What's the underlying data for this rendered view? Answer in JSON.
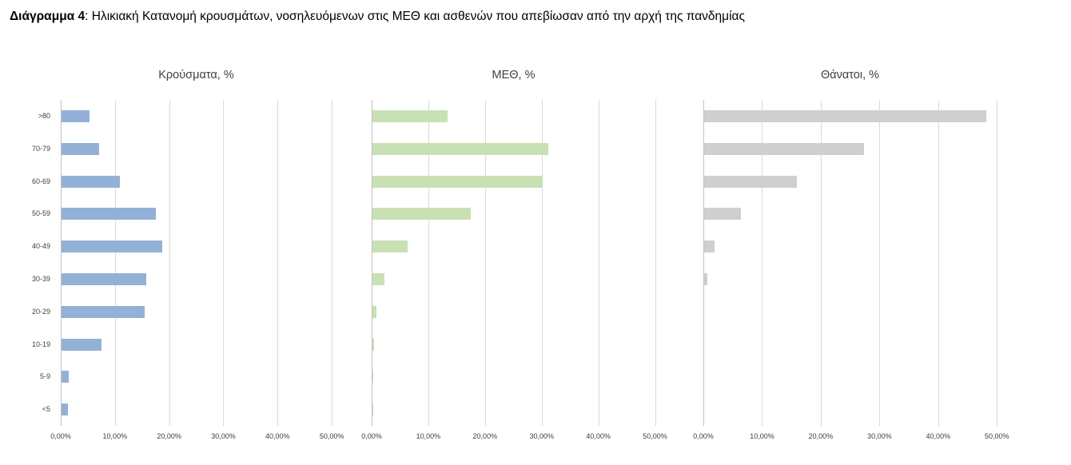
{
  "caption": {
    "label": "Διάγραμμα 4",
    "separator": ": ",
    "text": "Ηλικιακή Κατανομή κρουσμάτων, νοσηλευόμενων στις ΜΕΘ και ασθενών που απεβίωσαν από την αρχή της πανδημίας"
  },
  "colors": {
    "gridline": "#d9d9d9",
    "axis_line": "#c0c0c0",
    "text": "#404040",
    "cases_bar": "#93b1d6",
    "icu_bar": "#c7e1b5",
    "deaths_bar": "#d0cece"
  },
  "chart_data": [
    {
      "type": "bar",
      "orientation": "horizontal",
      "title": "Κρούσματα, %",
      "categories": [
        ">80",
        "70-79",
        "60-69",
        "50-59",
        "40-49",
        "30-39",
        "20-29",
        "10-19",
        "5-9",
        "<5"
      ],
      "values": [
        5.1,
        6.9,
        10.7,
        17.4,
        18.6,
        15.6,
        15.4,
        7.3,
        1.4,
        1.2
      ],
      "bar_color": "#93b1d6",
      "x_ticks": [
        "0,00%",
        "10,00%",
        "20,00%",
        "30,00%",
        "40,00%",
        "50,00%"
      ],
      "tick_values": [
        0,
        10,
        20,
        30,
        40,
        50
      ],
      "xlim": [
        0,
        55
      ],
      "grid": true,
      "show_category_labels": true
    },
    {
      "type": "bar",
      "orientation": "horizontal",
      "title": "ΜΕΘ, %",
      "categories": [
        ">80",
        "70-79",
        "60-69",
        "50-59",
        "40-49",
        "30-39",
        "20-29",
        "10-19",
        "5-9",
        "<5"
      ],
      "values": [
        13.3,
        31.0,
        30.0,
        17.4,
        6.2,
        2.1,
        0.7,
        0.3,
        0.1,
        0.1
      ],
      "bar_color": "#c7e1b5",
      "x_ticks": [
        "0,00%",
        "10,00%",
        "20,00%",
        "30,00%",
        "40,00%",
        "50,00%"
      ],
      "tick_values": [
        0,
        10,
        20,
        30,
        40,
        50
      ],
      "xlim": [
        0,
        55
      ],
      "grid": true,
      "show_category_labels": false
    },
    {
      "type": "bar",
      "orientation": "horizontal",
      "title": "Θάνατοι, %",
      "categories": [
        ">80",
        "70-79",
        "60-69",
        "50-59",
        "40-49",
        "30-39",
        "20-29",
        "10-19",
        "5-9",
        "<5"
      ],
      "values": [
        48.0,
        27.2,
        15.8,
        6.3,
        1.8,
        0.5,
        0,
        0,
        0,
        0
      ],
      "bar_color": "#d0cece",
      "x_ticks": [
        "0,00%",
        "10,00%",
        "20,00%",
        "30,00%",
        "40,00%",
        "50,00%"
      ],
      "tick_values": [
        0,
        10,
        20,
        30,
        40,
        50
      ],
      "xlim": [
        0,
        55
      ],
      "grid": true,
      "show_category_labels": false
    }
  ]
}
